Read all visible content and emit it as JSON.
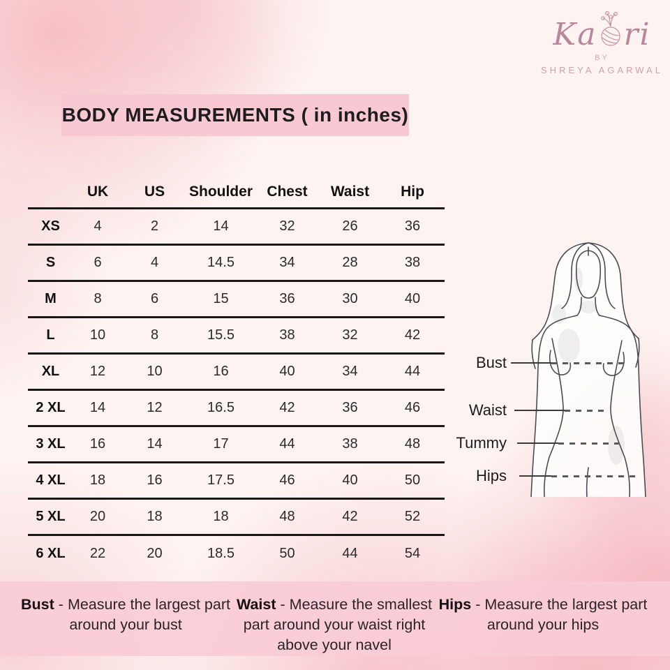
{
  "logo": {
    "brand_full": "Kaori",
    "brand_prefix": "Ka",
    "brand_suffix": "ri",
    "by_label": "BY",
    "owner_name": "SHREYA AGARWAL"
  },
  "title": "BODY MEASUREMENTS ( in inches)",
  "size_chart": {
    "columns": [
      "UK",
      "US",
      "Shoulder",
      "Chest",
      "Waist",
      "Hip"
    ],
    "rows": [
      {
        "size": "XS",
        "values": [
          "4",
          "2",
          "14",
          "32",
          "26",
          "36"
        ]
      },
      {
        "size": "S",
        "values": [
          "6",
          "4",
          "14.5",
          "34",
          "28",
          "38"
        ]
      },
      {
        "size": "M",
        "values": [
          "8",
          "6",
          "15",
          "36",
          "30",
          "40"
        ]
      },
      {
        "size": "L",
        "values": [
          "10",
          "8",
          "15.5",
          "38",
          "32",
          "42"
        ]
      },
      {
        "size": "XL",
        "values": [
          "12",
          "10",
          "16",
          "40",
          "34",
          "44"
        ]
      },
      {
        "size": "2 XL",
        "values": [
          "14",
          "12",
          "16.5",
          "42",
          "36",
          "46"
        ]
      },
      {
        "size": "3 XL",
        "values": [
          "16",
          "14",
          "17",
          "44",
          "38",
          "48"
        ]
      },
      {
        "size": "4 XL",
        "values": [
          "18",
          "16",
          "17.5",
          "46",
          "40",
          "50"
        ]
      },
      {
        "size": "5 XL",
        "values": [
          "20",
          "18",
          "18",
          "48",
          "42",
          "52"
        ]
      },
      {
        "size": "6 XL",
        "values": [
          "22",
          "20",
          "18.5",
          "50",
          "44",
          "54"
        ]
      }
    ]
  },
  "figure": {
    "labels": [
      {
        "label": "Bust"
      },
      {
        "label": "Waist"
      },
      {
        "label": "Tummy"
      },
      {
        "label": "Hips"
      }
    ]
  },
  "definitions": [
    {
      "term": "Bust",
      "separator": "-",
      "text": "Measure the largest part around your bust"
    },
    {
      "term": "Waist",
      "separator": "-",
      "text": "Measure the smallest part around your waist right above your navel"
    },
    {
      "term": "Hips",
      "separator": "-",
      "text": "Measure the largest part around your hips"
    }
  ],
  "colors": {
    "banner_pink": "#f8c8d3",
    "band_pink": "#f8ccd6",
    "logo_pink": "#b8879b",
    "watercolor_pink": "#f5b4bd"
  }
}
